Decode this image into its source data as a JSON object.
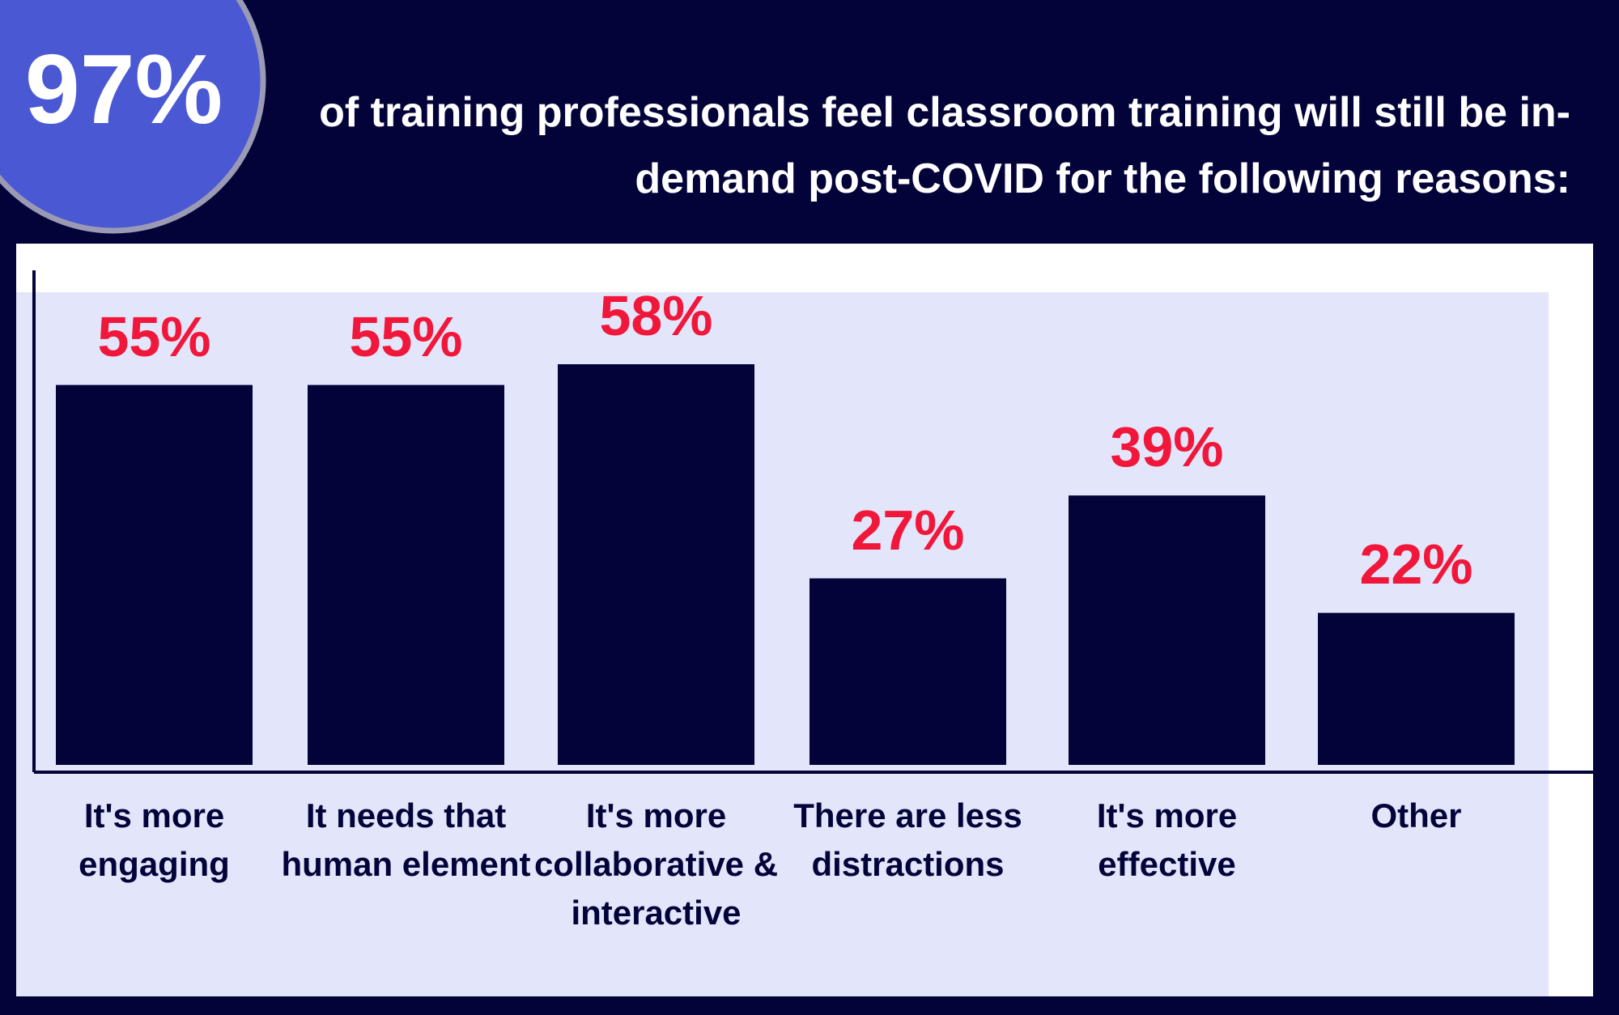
{
  "chart_data": {
    "type": "bar",
    "badge": "97%",
    "title": "of training professionals feel classroom training will still be in-demand post-COVID for the following reasons:",
    "categories": [
      "It's more engaging",
      "It needs that human element",
      "It's more collaborative & interactive",
      "There are less distractions",
      "It's more effective",
      "Other"
    ],
    "values": [
      55,
      55,
      58,
      27,
      39,
      22
    ],
    "value_labels": [
      "55%",
      "55%",
      "58%",
      "27%",
      "39%",
      "22%"
    ],
    "color": "#03033a",
    "label_color": "#f0173a"
  }
}
